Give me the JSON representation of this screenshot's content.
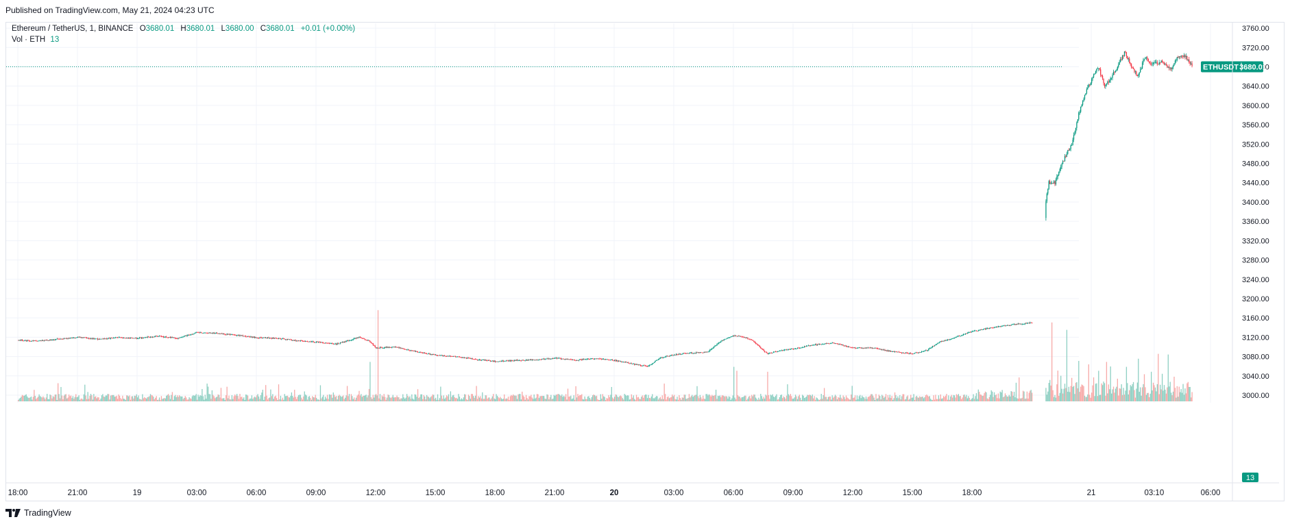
{
  "publish_line": "Published on TradingView.com, May 21, 2024 04:23 UTC",
  "legend": {
    "symbol": "Ethereum / TetherUS, 1, BINANCE",
    "o_label": "O",
    "o_value": "3680.01",
    "h_label": "H",
    "h_value": "3680.01",
    "l_label": "L",
    "l_value": "3680.00",
    "c_label": "C",
    "c_value": "3680.01",
    "change": "+0.01 (+0.00%)",
    "vol_label": "Vol · ETH",
    "vol_value": "13"
  },
  "price_tag": {
    "symbol": "ETHUSDT",
    "price": "3680.01"
  },
  "volume_tag": "13",
  "footer": {
    "brand": "TradingView"
  },
  "colors": {
    "up": "#089981",
    "down": "#f23645",
    "up_vol": "#8ecfc2",
    "down_vol": "#f7a9a7",
    "grid": "#f0f3fa",
    "tag": "#089981"
  },
  "chart_data": {
    "type": "candlestick",
    "title": "Ethereum / TetherUS, 1, BINANCE",
    "ylim": [
      3000,
      3780
    ],
    "y_ticks": [
      3760,
      3720,
      3680,
      3640,
      3600,
      3560,
      3520,
      3480,
      3440,
      3400,
      3360,
      3320,
      3280,
      3240,
      3200,
      3160,
      3120,
      3080,
      3040,
      3000
    ],
    "y_tick_labels": [
      "3760.00",
      "3720.00",
      "3680.00",
      "3640.00",
      "3600.00",
      "3560.00",
      "3520.00",
      "3480.00",
      "3440.00",
      "3400.00",
      "3360.00",
      "3320.00",
      "3280.00",
      "3240.00",
      "3200.00",
      "3160.00",
      "3120.00",
      "3080.00",
      "3040.00",
      "3000.00"
    ],
    "x_ticks": [
      {
        "label": "18:00",
        "t": 0,
        "bold": false
      },
      {
        "label": "21:00",
        "t": 180,
        "bold": false
      },
      {
        "label": "19",
        "t": 360,
        "bold": false
      },
      {
        "label": "03:00",
        "t": 540,
        "bold": false
      },
      {
        "label": "06:00",
        "t": 720,
        "bold": false
      },
      {
        "label": "09:00",
        "t": 900,
        "bold": false
      },
      {
        "label": "12:00",
        "t": 1080,
        "bold": false
      },
      {
        "label": "15:00",
        "t": 1260,
        "bold": false
      },
      {
        "label": "18:00",
        "t": 1440,
        "bold": false
      },
      {
        "label": "21:00",
        "t": 1620,
        "bold": false
      },
      {
        "label": "20",
        "t": 1800,
        "bold": true
      },
      {
        "label": "03:00",
        "t": 1980,
        "bold": false
      },
      {
        "label": "06:00",
        "t": 2160,
        "bold": false
      },
      {
        "label": "09:00",
        "t": 2340,
        "bold": false
      },
      {
        "label": "12:00",
        "t": 2520,
        "bold": false
      },
      {
        "label": "15:00",
        "t": 2700,
        "bold": false
      },
      {
        "label": "18:00",
        "t": 2880,
        "bold": false
      },
      {
        "label": "21",
        "t": 3240,
        "bold": false
      },
      {
        "label": "03:10",
        "t": 3430,
        "bold": false
      },
      {
        "label": "06:00",
        "t": 3600,
        "bold": false
      }
    ],
    "last_price": 3680.01,
    "price_path": [
      [
        0,
        3114
      ],
      [
        60,
        3112
      ],
      [
        120,
        3116
      ],
      [
        180,
        3120
      ],
      [
        240,
        3116
      ],
      [
        300,
        3119
      ],
      [
        360,
        3118
      ],
      [
        420,
        3122
      ],
      [
        480,
        3118
      ],
      [
        540,
        3130
      ],
      [
        600,
        3128
      ],
      [
        660,
        3124
      ],
      [
        720,
        3119
      ],
      [
        780,
        3118
      ],
      [
        840,
        3113
      ],
      [
        900,
        3110
      ],
      [
        960,
        3106
      ],
      [
        1030,
        3120
      ],
      [
        1060,
        3112
      ],
      [
        1080,
        3098
      ],
      [
        1140,
        3100
      ],
      [
        1200,
        3090
      ],
      [
        1260,
        3083
      ],
      [
        1320,
        3080
      ],
      [
        1380,
        3074
      ],
      [
        1440,
        3070
      ],
      [
        1500,
        3072
      ],
      [
        1560,
        3073
      ],
      [
        1620,
        3077
      ],
      [
        1680,
        3072
      ],
      [
        1740,
        3076
      ],
      [
        1800,
        3072
      ],
      [
        1860,
        3064
      ],
      [
        1900,
        3060
      ],
      [
        1940,
        3078
      ],
      [
        2000,
        3086
      ],
      [
        2080,
        3089
      ],
      [
        2120,
        3112
      ],
      [
        2160,
        3124
      ],
      [
        2200,
        3118
      ],
      [
        2220,
        3111
      ],
      [
        2260,
        3086
      ],
      [
        2300,
        3092
      ],
      [
        2340,
        3096
      ],
      [
        2400,
        3104
      ],
      [
        2460,
        3108
      ],
      [
        2520,
        3098
      ],
      [
        2580,
        3098
      ],
      [
        2640,
        3090
      ],
      [
        2700,
        3086
      ],
      [
        2740,
        3092
      ],
      [
        2780,
        3110
      ],
      [
        2820,
        3118
      ],
      [
        2880,
        3132
      ],
      [
        2940,
        3140
      ],
      [
        3000,
        3146
      ],
      [
        3060,
        3150
      ],
      [
        3090,
        3160
      ],
      [
        3100,
        3390
      ],
      [
        3110,
        3440
      ],
      [
        3130,
        3440
      ],
      [
        3150,
        3480
      ],
      [
        3180,
        3520
      ],
      [
        3200,
        3580
      ],
      [
        3230,
        3640
      ],
      [
        3260,
        3680
      ],
      [
        3280,
        3640
      ],
      [
        3310,
        3670
      ],
      [
        3340,
        3710
      ],
      [
        3360,
        3680
      ],
      [
        3380,
        3660
      ],
      [
        3400,
        3700
      ],
      [
        3420,
        3685
      ],
      [
        3450,
        3690
      ],
      [
        3480,
        3675
      ],
      [
        3500,
        3700
      ],
      [
        3520,
        3705
      ],
      [
        3545,
        3680
      ]
    ],
    "volume_spikes": [
      {
        "t": 1085,
        "v": 185,
        "dir": "down"
      },
      {
        "t": 1062,
        "v": 80,
        "dir": "up"
      },
      {
        "t": 570,
        "v": 36,
        "dir": "up"
      },
      {
        "t": 2160,
        "v": 70,
        "dir": "up"
      },
      {
        "t": 2170,
        "v": 62,
        "dir": "down"
      },
      {
        "t": 2263,
        "v": 60,
        "dir": "down"
      },
      {
        "t": 1950,
        "v": 36,
        "dir": "down"
      },
      {
        "t": 3095,
        "v": 200,
        "dir": "up"
      },
      {
        "t": 3120,
        "v": 160,
        "dir": "down"
      },
      {
        "t": 3165,
        "v": 145,
        "dir": "up"
      },
      {
        "t": 3200,
        "v": 82,
        "dir": "up"
      },
      {
        "t": 3230,
        "v": 75,
        "dir": "down"
      },
      {
        "t": 3260,
        "v": 62,
        "dir": "up"
      },
      {
        "t": 3285,
        "v": 80,
        "dir": "down"
      },
      {
        "t": 3345,
        "v": 70,
        "dir": "up"
      },
      {
        "t": 3400,
        "v": 55,
        "dir": "down"
      },
      {
        "t": 3420,
        "v": 60,
        "dir": "up"
      },
      {
        "t": 3470,
        "v": 95,
        "dir": "up"
      },
      {
        "t": 3490,
        "v": 50,
        "dir": "down"
      }
    ]
  }
}
